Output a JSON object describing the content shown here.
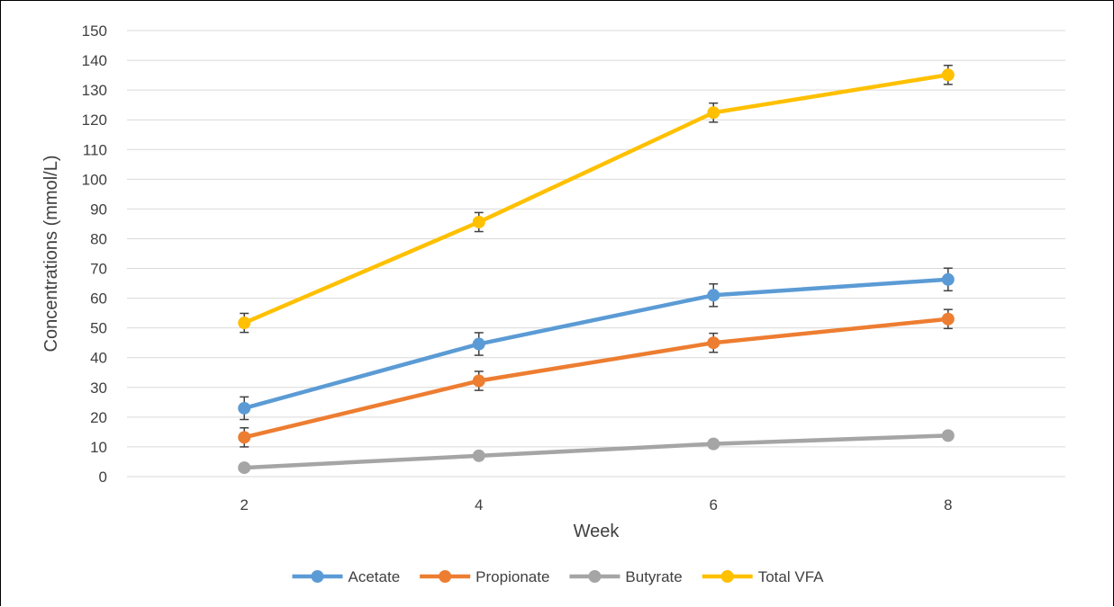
{
  "chart_data": {
    "type": "line",
    "title": "",
    "xlabel": "Week",
    "ylabel": "Concentrations (mmol/L)",
    "x": [
      2,
      4,
      6,
      8
    ],
    "ylim": [
      0,
      150
    ],
    "yticks": [
      0,
      10,
      20,
      30,
      40,
      50,
      60,
      70,
      80,
      90,
      100,
      110,
      120,
      130,
      140,
      150
    ],
    "grid": "horizontal",
    "legend_position": "bottom",
    "series": [
      {
        "name": "Acetate",
        "color": "#5B9BD5",
        "values": [
          23.0,
          44.6,
          61.0,
          66.3
        ],
        "error": [
          3.8,
          3.8,
          3.8,
          3.8
        ]
      },
      {
        "name": "Propionate",
        "color": "#ED7D31",
        "values": [
          13.2,
          32.2,
          45.0,
          53.0
        ],
        "error": [
          3.2,
          3.2,
          3.2,
          3.2
        ]
      },
      {
        "name": "Butyrate",
        "color": "#A5A5A5",
        "values": [
          3.0,
          7.0,
          11.0,
          13.8
        ],
        "error": [
          0.8,
          0.8,
          0.8,
          0.8
        ]
      },
      {
        "name": "Total VFA",
        "color": "#FFC000",
        "values": [
          51.7,
          85.6,
          122.4,
          135.1
        ],
        "error": [
          3.2,
          3.2,
          3.2,
          3.2
        ]
      }
    ]
  }
}
